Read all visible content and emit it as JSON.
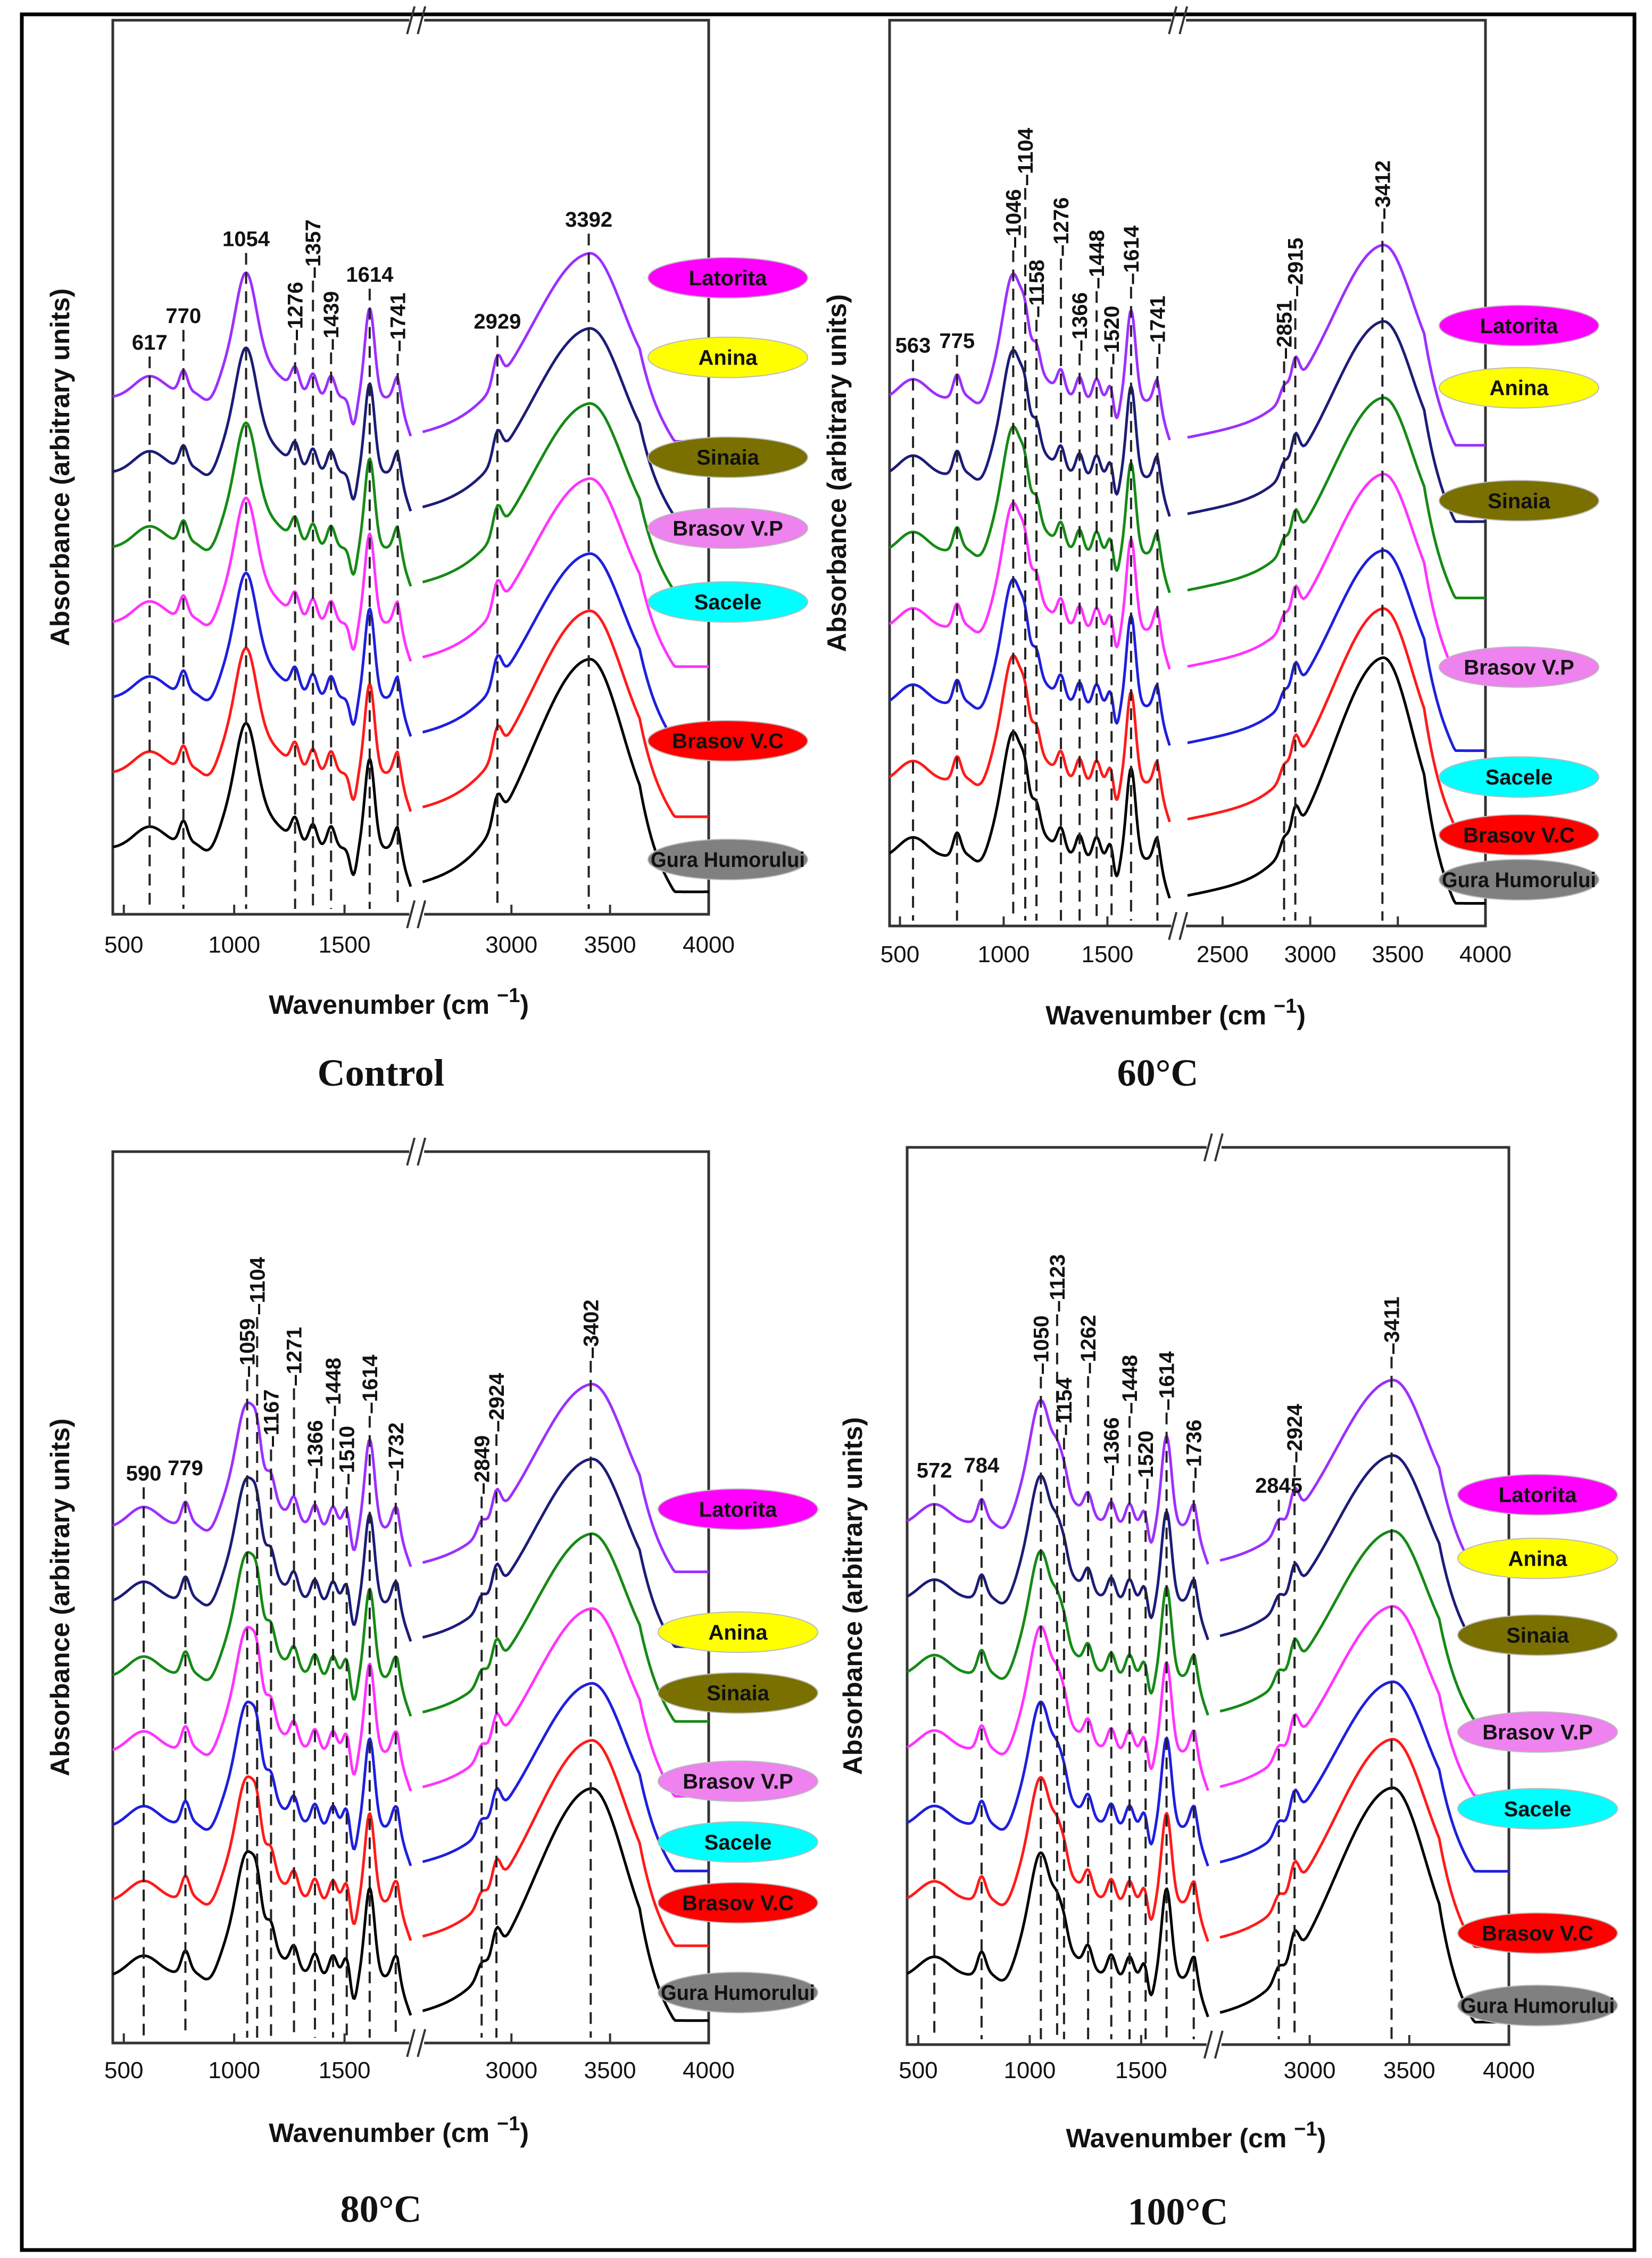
{
  "figure": {
    "y_label": "Absorbance (arbitrary units)",
    "x_label_main": "Wavenumber (cm",
    "x_label_sup": "−1",
    "x_label_close": ")"
  },
  "series": [
    {
      "name": "Latorita",
      "fill": "#ff00ff",
      "line": "#9b30ff"
    },
    {
      "name": "Anina",
      "fill": "#ffff00",
      "line": "#1c1c78"
    },
    {
      "name": "Sinaia",
      "fill": "#7a7000",
      "line": "#168a16"
    },
    {
      "name": "Brasov V.P",
      "fill": "#ee82ee",
      "line": "#ff33ff"
    },
    {
      "name": "Sacele",
      "fill": "#00ffff",
      "line": "#1f1fdd"
    },
    {
      "name": "Brasov V.C",
      "fill": "#ff0000",
      "line": "#ff1a1a"
    },
    {
      "name": "Gura Humorului",
      "fill": "#808080",
      "line": "#000000"
    }
  ],
  "chart_data": [
    {
      "type": "line",
      "title": "Control",
      "xlabel": "Wavenumber (cm−1)",
      "ylabel": "Absorbance (arbitrary units)",
      "x_segments": [
        [
          450,
          1800
        ],
        [
          2550,
          4000
        ]
      ],
      "x_ticks": [
        "500",
        "1000",
        "1500",
        "3000",
        "3500",
        "4000"
      ],
      "peaks": [
        {
          "label": "617",
          "x": 617,
          "vertical": false
        },
        {
          "label": "770",
          "x": 770,
          "vertical": false
        },
        {
          "label": "1054",
          "x": 1054,
          "vertical": false
        },
        {
          "label": "1276",
          "x": 1276,
          "vertical": true
        },
        {
          "label": "1357",
          "x": 1357,
          "vertical": true
        },
        {
          "label": "1439",
          "x": 1439,
          "vertical": true
        },
        {
          "label": "1614",
          "x": 1614,
          "vertical": false
        },
        {
          "label": "1741",
          "x": 1741,
          "vertical": true
        },
        {
          "label": "2929",
          "x": 2929,
          "vertical": false
        },
        {
          "label": "3392",
          "x": 3392,
          "vertical": false
        }
      ]
    },
    {
      "type": "line",
      "title": "60°C",
      "xlabel": "Wavenumber (cm−1)",
      "ylabel": "Absorbance (arbitrary units)",
      "x_segments": [
        [
          450,
          1800
        ],
        [
          2300,
          4000
        ]
      ],
      "x_ticks": [
        "500",
        "1000",
        "1500",
        "2500",
        "3000",
        "3500",
        "4000"
      ],
      "peaks": [
        {
          "label": "563",
          "x": 563,
          "vertical": false
        },
        {
          "label": "775",
          "x": 775,
          "vertical": false
        },
        {
          "label": "1046",
          "x": 1046,
          "vertical": true
        },
        {
          "label": "1104",
          "x": 1104,
          "vertical": true
        },
        {
          "label": "1158",
          "x": 1158,
          "vertical": true
        },
        {
          "label": "1276",
          "x": 1276,
          "vertical": true
        },
        {
          "label": "1366",
          "x": 1366,
          "vertical": true
        },
        {
          "label": "1448",
          "x": 1448,
          "vertical": true
        },
        {
          "label": "1520",
          "x": 1520,
          "vertical": true
        },
        {
          "label": "1614",
          "x": 1614,
          "vertical": true
        },
        {
          "label": "1741",
          "x": 1741,
          "vertical": true
        },
        {
          "label": "2851",
          "x": 2851,
          "vertical": true
        },
        {
          "label": "2915",
          "x": 2915,
          "vertical": true
        },
        {
          "label": "3412",
          "x": 3412,
          "vertical": true
        }
      ]
    },
    {
      "type": "line",
      "title": "80°C",
      "xlabel": "Wavenumber (cm−1)",
      "ylabel": "Absorbance (arbitrary units)",
      "x_segments": [
        [
          450,
          1800
        ],
        [
          2550,
          4000
        ]
      ],
      "x_ticks": [
        "500",
        "1000",
        "1500",
        "3000",
        "3500",
        "4000"
      ],
      "peaks": [
        {
          "label": "590",
          "x": 590,
          "vertical": false
        },
        {
          "label": "779",
          "x": 779,
          "vertical": false
        },
        {
          "label": "1059",
          "x": 1059,
          "vertical": true
        },
        {
          "label": "1104",
          "x": 1104,
          "vertical": true
        },
        {
          "label": "1167",
          "x": 1167,
          "vertical": true
        },
        {
          "label": "1271",
          "x": 1271,
          "vertical": true
        },
        {
          "label": "1366",
          "x": 1366,
          "vertical": true
        },
        {
          "label": "1448",
          "x": 1448,
          "vertical": true
        },
        {
          "label": "1510",
          "x": 1510,
          "vertical": true
        },
        {
          "label": "1614",
          "x": 1614,
          "vertical": true
        },
        {
          "label": "1732",
          "x": 1732,
          "vertical": true
        },
        {
          "label": "2849",
          "x": 2849,
          "vertical": true
        },
        {
          "label": "2924",
          "x": 2924,
          "vertical": true
        },
        {
          "label": "3402",
          "x": 3402,
          "vertical": true
        }
      ]
    },
    {
      "type": "line",
      "title": "100°C",
      "xlabel": "Wavenumber (cm−1)",
      "ylabel": "Absorbance (arbitrary units)",
      "x_segments": [
        [
          450,
          1800
        ],
        [
          2550,
          4000
        ]
      ],
      "x_ticks": [
        "500",
        "1000",
        "1500",
        "3000",
        "3500",
        "4000"
      ],
      "peaks": [
        {
          "label": "572",
          "x": 572,
          "vertical": false
        },
        {
          "label": "784",
          "x": 784,
          "vertical": false
        },
        {
          "label": "1050",
          "x": 1050,
          "vertical": true
        },
        {
          "label": "1123",
          "x": 1123,
          "vertical": true
        },
        {
          "label": "1154",
          "x": 1154,
          "vertical": true
        },
        {
          "label": "1262",
          "x": 1262,
          "vertical": true
        },
        {
          "label": "1366",
          "x": 1366,
          "vertical": true
        },
        {
          "label": "1448",
          "x": 1448,
          "vertical": true
        },
        {
          "label": "1520",
          "x": 1520,
          "vertical": true
        },
        {
          "label": "1614",
          "x": 1614,
          "vertical": true
        },
        {
          "label": "1736",
          "x": 1736,
          "vertical": true
        },
        {
          "label": "2845",
          "x": 2845,
          "vertical": false
        },
        {
          "label": "2924",
          "x": 2924,
          "vertical": true
        },
        {
          "label": "3411",
          "x": 3411,
          "vertical": true
        }
      ]
    }
  ]
}
